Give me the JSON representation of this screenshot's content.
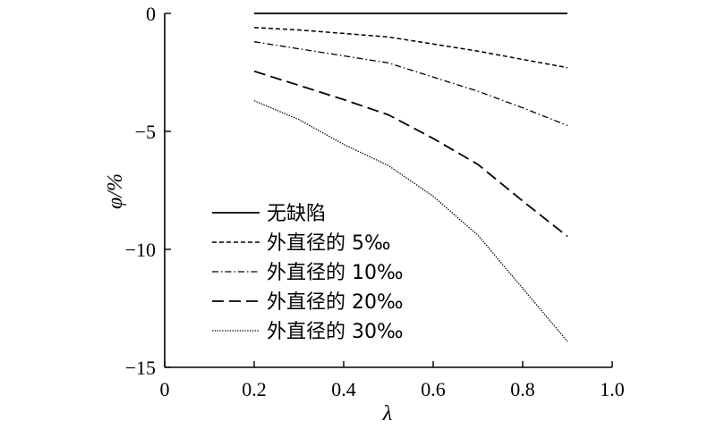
{
  "chart_data": {
    "type": "line",
    "xlabel": "λ",
    "ylabel": "φ/%",
    "xlim": [
      0,
      1.0
    ],
    "ylim": [
      -15,
      0
    ],
    "x_ticks": [
      {
        "value": 0,
        "label": "0"
      },
      {
        "value": 0.2,
        "label": "0.2"
      },
      {
        "value": 0.4,
        "label": "0.4"
      },
      {
        "value": 0.6,
        "label": "0.6"
      },
      {
        "value": 0.8,
        "label": "0.8"
      },
      {
        "value": 1.0,
        "label": "1.0"
      }
    ],
    "y_ticks": [
      {
        "value": 0,
        "label": "0"
      },
      {
        "value": -5,
        "label": "−5"
      },
      {
        "value": -10,
        "label": "−10"
      },
      {
        "value": -15,
        "label": "−15"
      }
    ],
    "grid": false,
    "legend_position": "bottom-left",
    "series": [
      {
        "name": "无缺陷",
        "dash": "solid",
        "x": [
          0.2,
          0.3,
          0.4,
          0.5,
          0.6,
          0.7,
          0.8,
          0.9
        ],
        "values": [
          0.0,
          0.0,
          0.0,
          0.0,
          0.0,
          0.0,
          0.0,
          0.0
        ]
      },
      {
        "name": "外直径的 5‰",
        "dash": "short",
        "x": [
          0.2,
          0.3,
          0.4,
          0.5,
          0.6,
          0.7,
          0.8,
          0.9
        ],
        "values": [
          -0.6,
          -0.7,
          -0.85,
          -1.0,
          -1.3,
          -1.6,
          -1.95,
          -2.3
        ]
      },
      {
        "name": "外直径的 10‰",
        "dash": "dashdot",
        "x": [
          0.2,
          0.3,
          0.4,
          0.5,
          0.6,
          0.7,
          0.8,
          0.9
        ],
        "values": [
          -1.2,
          -1.5,
          -1.8,
          -2.1,
          -2.7,
          -3.3,
          -4.0,
          -4.75
        ]
      },
      {
        "name": "外直径的 20‰",
        "dash": "long",
        "x": [
          0.2,
          0.3,
          0.4,
          0.5,
          0.6,
          0.7,
          0.8,
          0.9
        ],
        "values": [
          -2.45,
          -3.05,
          -3.65,
          -4.3,
          -5.3,
          -6.4,
          -7.95,
          -9.45
        ]
      },
      {
        "name": "外直径的 30‰",
        "dash": "dotted",
        "x": [
          0.2,
          0.3,
          0.4,
          0.5,
          0.6,
          0.7,
          0.8,
          0.9
        ],
        "values": [
          -3.7,
          -4.5,
          -5.55,
          -6.45,
          -7.75,
          -9.4,
          -11.65,
          -13.9
        ]
      }
    ]
  }
}
